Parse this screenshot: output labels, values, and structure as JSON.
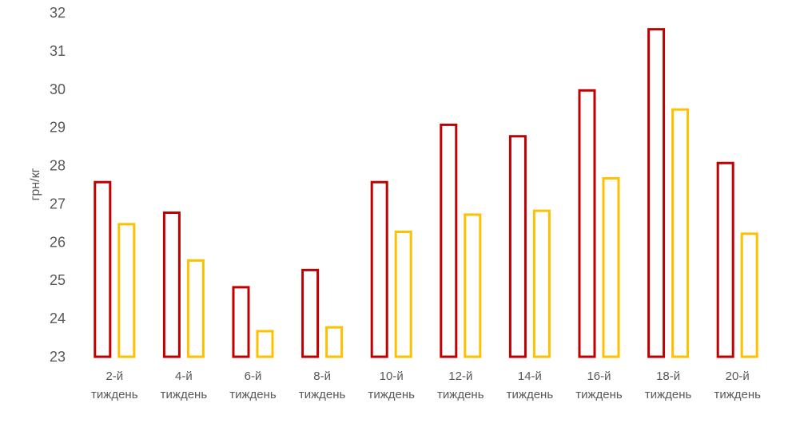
{
  "chart_data": {
    "type": "bar",
    "title": "",
    "xlabel": "",
    "ylabel": "грн/кг",
    "ylim": [
      23,
      32
    ],
    "yticks": [
      "23",
      "24",
      "25",
      "26",
      "27",
      "28",
      "29",
      "30",
      "31",
      "32"
    ],
    "grid": false,
    "legend": "none",
    "categories": [
      [
        "2-й",
        "тиждень"
      ],
      [
        "4-й",
        "тиждень"
      ],
      [
        "6-й",
        "тиждень"
      ],
      [
        "8-й",
        "тиждень"
      ],
      [
        "10-й",
        "тиждень"
      ],
      [
        "12-й",
        "тиждень"
      ],
      [
        "14-й",
        "тиждень"
      ],
      [
        "16-й",
        "тиждень"
      ],
      [
        "18-й",
        "тиждень"
      ],
      [
        "20-й",
        "тиждень"
      ]
    ],
    "series": [
      {
        "color": "#c00000",
        "style": "outline",
        "values": [
          27.6,
          26.8,
          24.85,
          25.3,
          27.6,
          29.1,
          28.8,
          30.0,
          31.6,
          28.1
        ]
      },
      {
        "color": "#ffc000",
        "style": "outline",
        "values": [
          26.5,
          25.55,
          23.7,
          23.8,
          26.3,
          26.75,
          26.85,
          27.7,
          29.5,
          26.25
        ]
      }
    ]
  }
}
